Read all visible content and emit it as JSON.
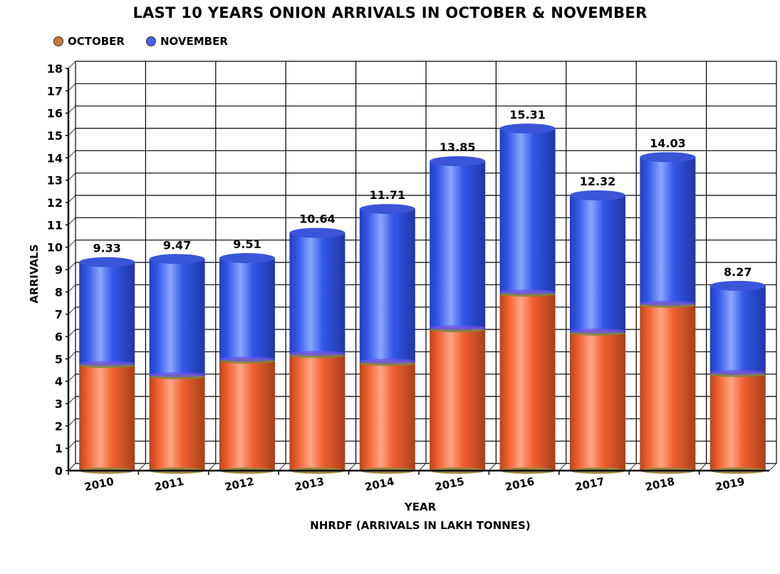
{
  "title": "LAST 10 YEARS ONION ARRIVALS IN OCTOBER & NOVEMBER",
  "legend": {
    "october": {
      "label": "OCTOBER",
      "color": "#c87a3a"
    },
    "november": {
      "label": "NOVEMBER",
      "color": "#4a5ef0"
    }
  },
  "axes": {
    "xlabel": "YEAR",
    "ylabel": "ARRIVALS",
    "source": "NHRDF (ARRIVALS IN LAKH TONNES)"
  },
  "colors": {
    "october_bar": "#f0602a",
    "november_bar": "#2f52e0"
  },
  "chart_data": {
    "type": "bar",
    "stacked": true,
    "title": "LAST 10 YEARS ONION ARRIVALS IN OCTOBER & NOVEMBER",
    "xlabel": "YEAR",
    "ylabel": "ARRIVALS",
    "note": "NHRDF (ARRIVALS IN LAKH TONNES)",
    "categories": [
      "2010",
      "2011",
      "2012",
      "2013",
      "2014",
      "2015",
      "2016",
      "2017",
      "2018",
      "2019"
    ],
    "series": [
      {
        "name": "OCTOBER",
        "values": [
          4.7,
          4.2,
          4.9,
          5.15,
          4.8,
          6.3,
          7.9,
          6.15,
          7.4,
          4.3
        ]
      },
      {
        "name": "NOVEMBER",
        "values": [
          4.63,
          5.27,
          4.61,
          5.49,
          6.91,
          7.55,
          7.41,
          6.17,
          6.63,
          3.97
        ]
      }
    ],
    "totals": [
      9.33,
      9.47,
      9.51,
      10.64,
      11.71,
      13.85,
      15.31,
      12.32,
      14.03,
      8.27
    ],
    "total_labels": [
      "9.33",
      "9.47",
      "9.51",
      "10.64",
      "11.71",
      "13.85",
      "15.31",
      "12.32",
      "14.03",
      "8.27"
    ],
    "yticks": [
      0,
      1,
      2,
      3,
      4,
      5,
      6,
      7,
      8,
      9,
      10,
      11,
      12,
      13,
      14,
      15,
      16,
      17,
      18
    ],
    "ylim": [
      0,
      18
    ],
    "grid": true,
    "legend_position": "top-left"
  }
}
